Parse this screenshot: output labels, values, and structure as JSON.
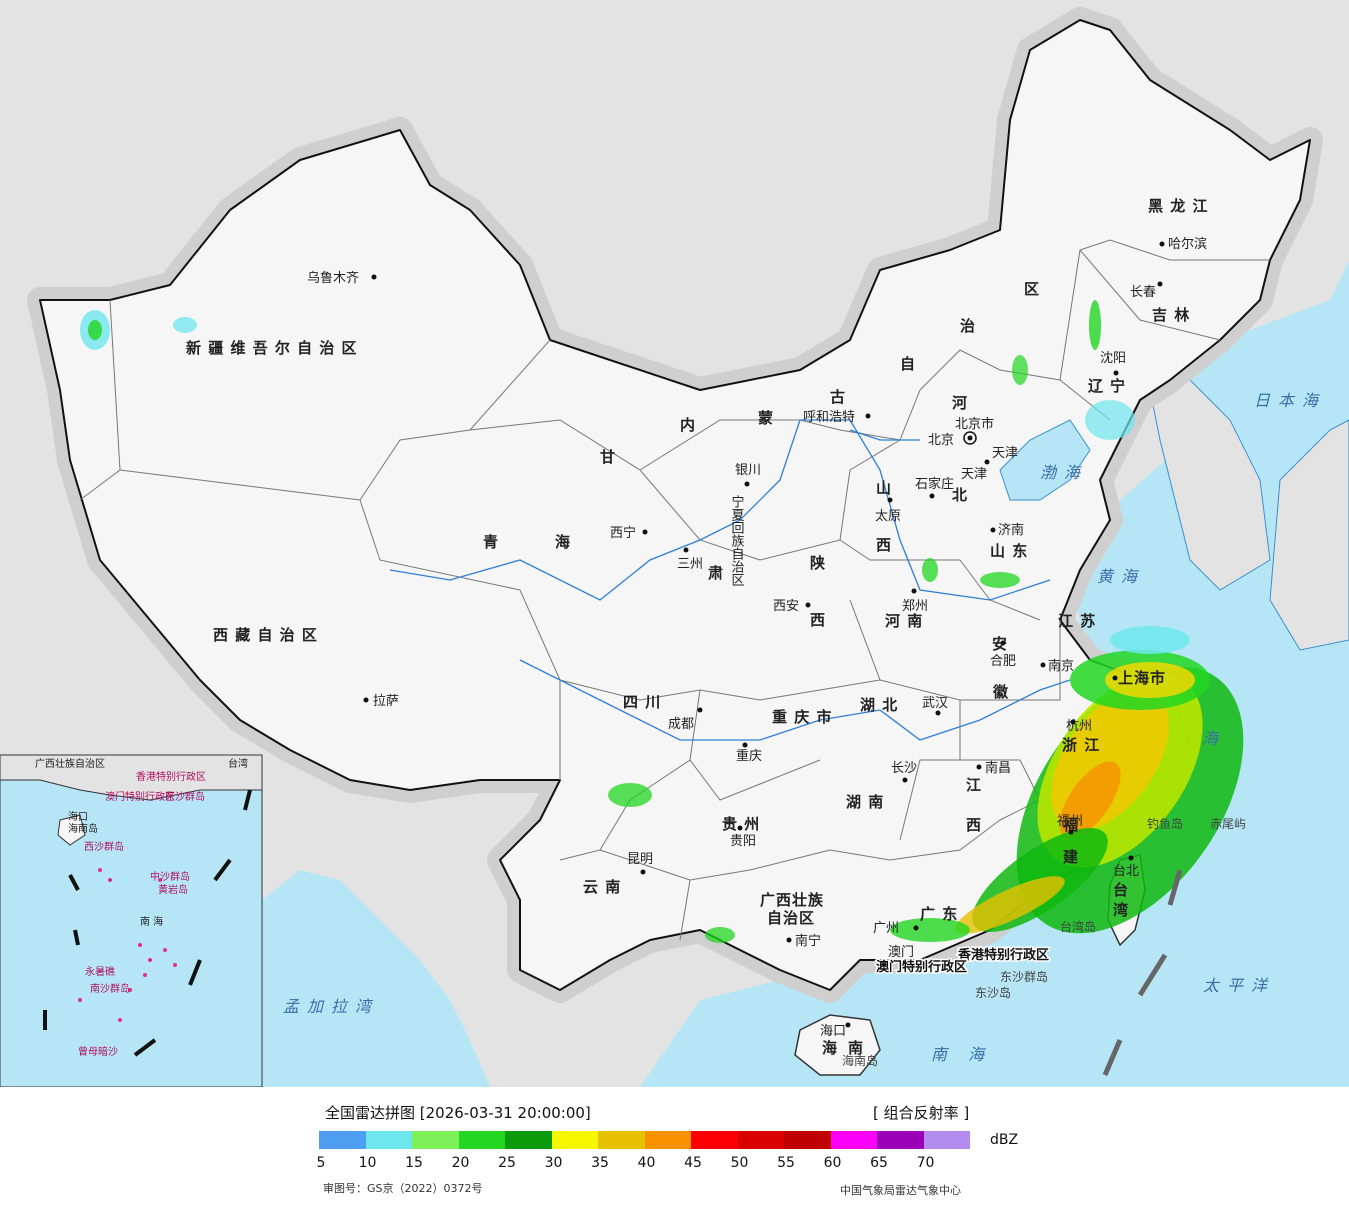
{
  "map": {
    "provinces": [
      {
        "id": "xinjiang",
        "label": "新 疆 维 吾 尔 自 治 区"
      },
      {
        "id": "xizang",
        "label": "西 藏 自 治 区"
      },
      {
        "id": "qinghai-a",
        "label": "青"
      },
      {
        "id": "qinghai-b",
        "label": "海"
      },
      {
        "id": "gansu",
        "label": "甘"
      },
      {
        "id": "gansu-b",
        "label": "肃"
      },
      {
        "id": "neimenggu-a",
        "label": "内"
      },
      {
        "id": "neimenggu-b",
        "label": "蒙"
      },
      {
        "id": "neimenggu-c",
        "label": "古"
      },
      {
        "id": "neimenggu-d",
        "label": "自"
      },
      {
        "id": "neimenggu-e",
        "label": "治"
      },
      {
        "id": "neimenggu-f",
        "label": "区"
      },
      {
        "id": "heilongjiang",
        "label": "黑 龙 江"
      },
      {
        "id": "jilin",
        "label": "吉 林"
      },
      {
        "id": "liaoning-a",
        "label": "辽"
      },
      {
        "id": "liaoning-b",
        "label": "宁"
      },
      {
        "id": "hebei-a",
        "label": "河"
      },
      {
        "id": "hebei-b",
        "label": "北"
      },
      {
        "id": "shanxi-a",
        "label": "山"
      },
      {
        "id": "shanxi-b",
        "label": "西"
      },
      {
        "id": "shandong",
        "label": "山 东"
      },
      {
        "id": "henan",
        "label": "河 南"
      },
      {
        "id": "shaanxi-a",
        "label": "陕"
      },
      {
        "id": "shaanxi-b",
        "label": "西"
      },
      {
        "id": "sichuan",
        "label": "四    川"
      },
      {
        "id": "chongqing",
        "label": "重 庆 市"
      },
      {
        "id": "hubei",
        "label": "湖 北"
      },
      {
        "id": "hunan",
        "label": "湖 南"
      },
      {
        "id": "anhui-a",
        "label": "安"
      },
      {
        "id": "anhui-b",
        "label": "徽"
      },
      {
        "id": "jiangsu",
        "label": "江 苏"
      },
      {
        "id": "zhejiang",
        "label": "浙 江"
      },
      {
        "id": "jiangxi-a",
        "label": "江"
      },
      {
        "id": "jiangxi-b",
        "label": "西"
      },
      {
        "id": "fujian-a",
        "label": "福"
      },
      {
        "id": "fujian-b",
        "label": "建"
      },
      {
        "id": "guizhou",
        "label": "贵 州"
      },
      {
        "id": "yunnan",
        "label": "云 南"
      },
      {
        "id": "guangxi",
        "label": "广西壮族"
      },
      {
        "id": "guangxi-b",
        "label": "自治区"
      },
      {
        "id": "guangdong",
        "label": "广 东"
      },
      {
        "id": "hainan-a",
        "label": "海"
      },
      {
        "id": "hainan-b",
        "label": "南"
      },
      {
        "id": "taiwan-a",
        "label": "台"
      },
      {
        "id": "taiwan-b",
        "label": "湾"
      },
      {
        "id": "ningxia",
        "label": "宁夏回族自治区"
      },
      {
        "id": "shanghai",
        "label": "上海市"
      },
      {
        "id": "tianjin",
        "label": "天津"
      }
    ],
    "cities": [
      {
        "id": "urumqi",
        "label": "乌鲁木齐"
      },
      {
        "id": "lhasa",
        "label": "拉萨"
      },
      {
        "id": "xining",
        "label": "西宁"
      },
      {
        "id": "lanzhou",
        "label": "三州"
      },
      {
        "id": "yinchuan",
        "label": "银川"
      },
      {
        "id": "hohhot",
        "label": "呼和浩特"
      },
      {
        "id": "beijing",
        "label": "北京"
      },
      {
        "id": "beijing-city",
        "label": "北京市"
      },
      {
        "id": "tianjin-city",
        "label": "天津"
      },
      {
        "id": "shijiazhuang",
        "label": "石家庄"
      },
      {
        "id": "taiyuan",
        "label": "太原"
      },
      {
        "id": "jinan",
        "label": "济南"
      },
      {
        "id": "zhengzhou",
        "label": "郑州"
      },
      {
        "id": "xian",
        "label": "西安"
      },
      {
        "id": "chengdu",
        "label": "成都"
      },
      {
        "id": "chongqing-city",
        "label": "重庆"
      },
      {
        "id": "wuhan",
        "label": "武汉"
      },
      {
        "id": "hefei",
        "label": "合肥"
      },
      {
        "id": "nanjing",
        "label": "南京"
      },
      {
        "id": "shanghai-city",
        "label": "上海市"
      },
      {
        "id": "hangzhou",
        "label": "杭州"
      },
      {
        "id": "nanchang",
        "label": "南昌"
      },
      {
        "id": "changsha",
        "label": "长沙"
      },
      {
        "id": "guiyang",
        "label": "贵阳"
      },
      {
        "id": "kunming",
        "label": "昆明"
      },
      {
        "id": "nanning",
        "label": "南宁"
      },
      {
        "id": "guangzhou",
        "label": "广州"
      },
      {
        "id": "fuzhou",
        "label": "福州"
      },
      {
        "id": "haikou",
        "label": "海口"
      },
      {
        "id": "taipei",
        "label": "台北"
      },
      {
        "id": "shenyang",
        "label": "沈阳"
      },
      {
        "id": "changchun",
        "label": "长春"
      },
      {
        "id": "harbin",
        "label": "哈尔滨"
      },
      {
        "id": "aomen",
        "label": "澳门"
      }
    ],
    "special": [
      {
        "id": "hk",
        "label": "香港特别行政区"
      },
      {
        "id": "macau",
        "label": "澳门特别行政区"
      }
    ],
    "seas": [
      {
        "id": "bohai",
        "label": "渤海"
      },
      {
        "id": "huanghai",
        "label": "黄海"
      },
      {
        "id": "donghai",
        "label": "海"
      },
      {
        "id": "nanhai",
        "label": "南 海"
      },
      {
        "id": "taipingyang",
        "label": "太平洋"
      },
      {
        "id": "riben",
        "label": "日本海"
      },
      {
        "id": "mengjiala",
        "label": "孟加拉湾"
      }
    ],
    "islands": [
      {
        "id": "diaoyu",
        "label": "钓鱼岛"
      },
      {
        "id": "chiwei",
        "label": "赤尾屿"
      },
      {
        "id": "taiwan-island",
        "label": "台湾岛"
      },
      {
        "id": "dongsha-qundao",
        "label": "东沙群岛"
      },
      {
        "id": "dongsha-dao",
        "label": "东沙岛"
      },
      {
        "id": "hainan-island",
        "label": "海南岛"
      }
    ],
    "inset": {
      "labels": [
        "广西壮族自治区",
        "香港特别行政区",
        "澳门特别行政区",
        "东沙群岛",
        "海口",
        "海南岛",
        "西沙群岛",
        "中沙群岛",
        "黄岩岛",
        "南 海",
        "永暑礁",
        "南沙群岛",
        "曾母暗沙",
        "台湾"
      ]
    }
  },
  "legend": {
    "title": "全国雷达拼图 [2026-03-31 20:00:00]",
    "product": "[ 组合反射率 ]",
    "unit": "dBZ",
    "ticks": [
      "5",
      "10",
      "15",
      "20",
      "25",
      "30",
      "35",
      "40",
      "45",
      "50",
      "55",
      "60",
      "65",
      "70"
    ],
    "colors": [
      "#4d9ef0",
      "#6ee6ee",
      "#7ef05a",
      "#22d622",
      "#0a9a0a",
      "#f6f600",
      "#e8c100",
      "#f79100",
      "#fa0000",
      "#d80000",
      "#c00000",
      "#fa00fa",
      "#9a00b8",
      "#b48cf0"
    ],
    "approval": "审图号：GS京（2022）0372号",
    "org": "中国气象局雷达气象中心"
  }
}
